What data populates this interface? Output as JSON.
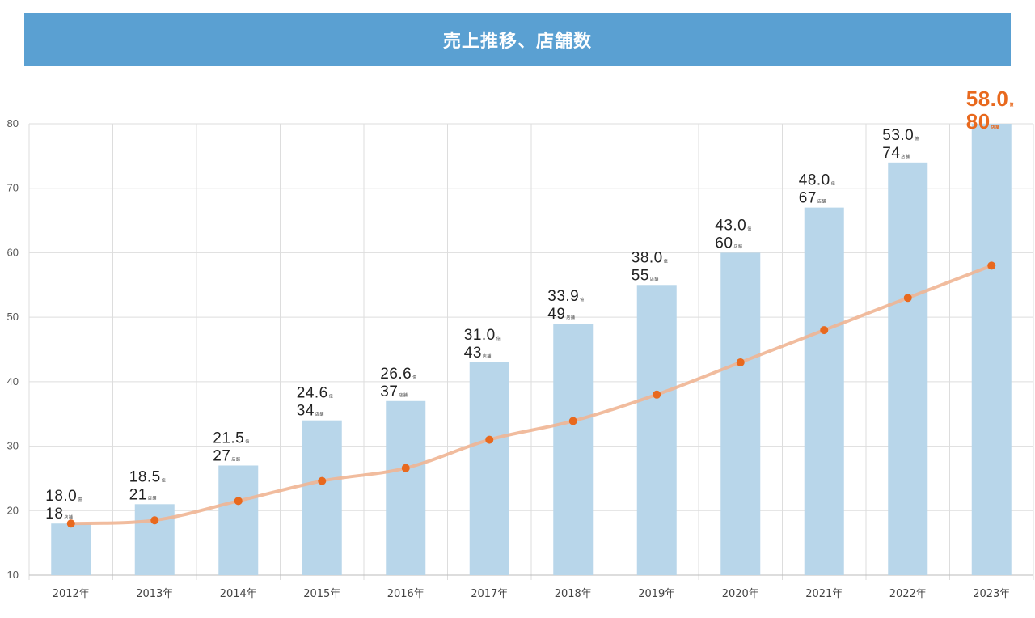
{
  "header": {
    "title": "売上推移、店舗数"
  },
  "colors": {
    "banner": "#5aa0d2",
    "bar": "#b8d6ea",
    "line": "#f0b593",
    "point": "#e8691e",
    "highlight": "#e8691e",
    "grid": "#dddddd"
  },
  "units": {
    "sales": "億",
    "stores": "店舗"
  },
  "chart_data": {
    "type": "bar",
    "title": "売上推移、店舗数",
    "categories": [
      "2012年",
      "2013年",
      "2014年",
      "2015年",
      "2016年",
      "2017年",
      "2018年",
      "2019年",
      "2020年",
      "2021年",
      "2022年",
      "2023年"
    ],
    "series": [
      {
        "type": "bar",
        "values": [
          18,
          21,
          27,
          34,
          37,
          43,
          49,
          55,
          60,
          67,
          74,
          80
        ]
      },
      {
        "type": "line",
        "values": [
          18.0,
          18.5,
          21.5,
          24.6,
          26.6,
          31.0,
          33.9,
          38.0,
          43.0,
          48.0,
          53.0,
          58.0
        ]
      }
    ],
    "sales_labels": [
      "18.0",
      "18.5",
      "21.5",
      "24.6",
      "26.6",
      "31.0",
      "33.9",
      "38.0",
      "43.0",
      "48.0",
      "53.0",
      "58.0"
    ],
    "store_labels": [
      "18",
      "21",
      "27",
      "34",
      "37",
      "43",
      "49",
      "55",
      "60",
      "67",
      "74",
      "80"
    ],
    "highlight_index": 11,
    "ylim": [
      10,
      80
    ],
    "yticks": [
      10,
      20,
      30,
      40,
      50,
      60,
      70,
      80
    ],
    "grid": true,
    "xlabel": "",
    "ylabel": ""
  }
}
